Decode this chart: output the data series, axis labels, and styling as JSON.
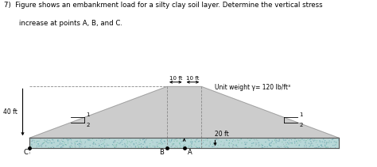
{
  "title_line1": "7)  Figure shows an embankment load for a silty clay soil layer. Determine the vertical stress",
  "title_line2": "     increase at points A, B, and C.",
  "unit_weight_label": "Unit weight γ= 120 lb/ft³",
  "embankment_color": "#cccccc",
  "embankment_edge_color": "#999999",
  "soil_color_light": "#b8d8d8",
  "soil_dot_colors": [
    "#7ab0b8",
    "#88c4b0",
    "#a0b8c0",
    "#6aa8b0"
  ],
  "top_flat_half": 10,
  "slope_run": 2,
  "slope_rise": 1,
  "height": 40,
  "soil_thickness": 8,
  "label_40ft": "40 ft",
  "label_10ft_left": "10 ft",
  "label_10ft_right": "10 ft",
  "label_20ft": "20 ft",
  "label_slope_left_top": "1",
  "label_slope_left_bot": "2",
  "label_slope_right_top": "1",
  "label_slope_right_bot": "2",
  "point_A": "A",
  "point_B": "B",
  "point_C": "C",
  "bg_color": "#ffffff",
  "dashed_color": "#888888",
  "text_color": "#000000",
  "xlim": [
    -105,
    110
  ],
  "ylim": [
    -20,
    58
  ]
}
